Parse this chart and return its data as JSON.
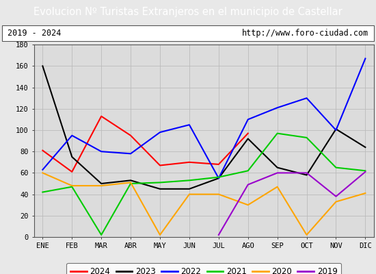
{
  "title": "Evolucion Nº Turistas Extranjeros en el municipio de Castellar",
  "subtitle_left": "2019 - 2024",
  "subtitle_right": "http://www.foro-ciudad.com",
  "title_bg": "#4d7cc7",
  "title_color": "#ffffff",
  "months": [
    "ENE",
    "FEB",
    "MAR",
    "ABR",
    "MAY",
    "JUN",
    "JUL",
    "AGO",
    "SEP",
    "OCT",
    "NOV",
    "DIC"
  ],
  "ylim": [
    0,
    180
  ],
  "yticks": [
    0,
    20,
    40,
    60,
    80,
    100,
    120,
    140,
    160,
    180
  ],
  "series": {
    "2024": {
      "color": "#ff0000",
      "data": [
        81,
        61,
        113,
        95,
        67,
        70,
        68,
        97,
        null,
        null,
        null,
        null
      ]
    },
    "2023": {
      "color": "#000000",
      "data": [
        160,
        75,
        50,
        53,
        45,
        45,
        55,
        92,
        65,
        58,
        101,
        84
      ]
    },
    "2022": {
      "color": "#0000ff",
      "data": [
        63,
        95,
        80,
        78,
        98,
        105,
        55,
        110,
        121,
        130,
        100,
        167
      ]
    },
    "2021": {
      "color": "#00cc00",
      "data": [
        42,
        47,
        2,
        50,
        51,
        53,
        56,
        62,
        97,
        93,
        65,
        62
      ]
    },
    "2020": {
      "color": "#ffa500",
      "data": [
        60,
        48,
        48,
        51,
        2,
        40,
        40,
        30,
        47,
        2,
        33,
        41
      ]
    },
    "2019": {
      "color": "#9900cc",
      "data": [
        null,
        null,
        null,
        null,
        null,
        null,
        2,
        49,
        60,
        60,
        38,
        61
      ]
    }
  },
  "legend_order": [
    "2024",
    "2023",
    "2022",
    "2021",
    "2020",
    "2019"
  ],
  "bg_color": "#e8e8e8",
  "plot_bg": "#e8e8e8",
  "inner_bg": "#dcdcdc",
  "grid_color": "#bbbbbb",
  "border_color": "#555555"
}
